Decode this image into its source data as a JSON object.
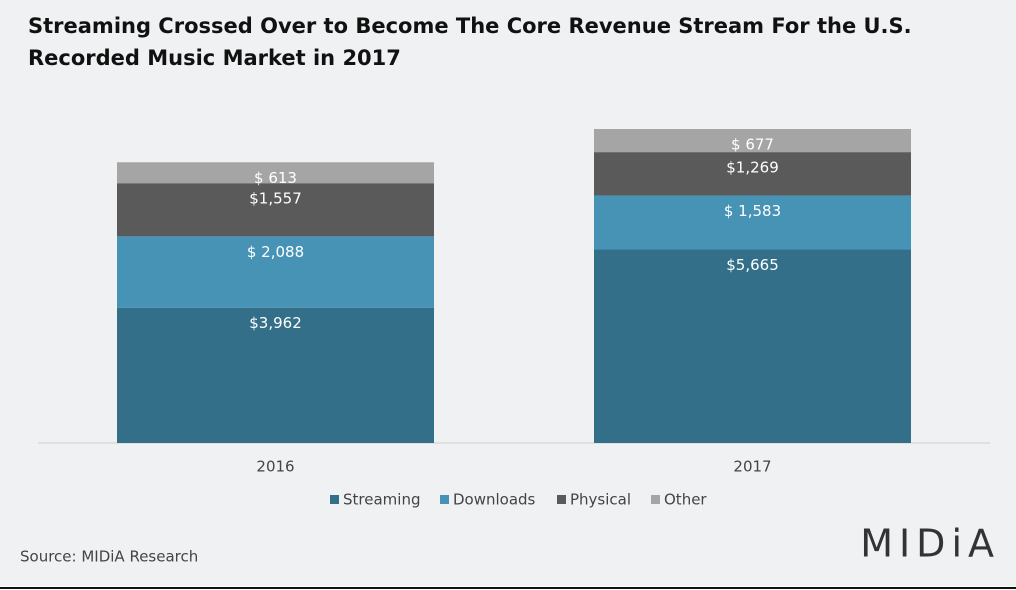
{
  "chart_data": {
    "type": "stacked-bar",
    "title": "Streaming Crossed Over to Become The Core Revenue Stream For the U.S. Recorded Music Market in 2017",
    "categories": [
      "2016",
      "2017"
    ],
    "series": [
      {
        "name": "Streaming",
        "color": "#336f89",
        "values": [
          3962,
          5665
        ],
        "value_labels": [
          "$3,962",
          "$5,665"
        ]
      },
      {
        "name": "Downloads",
        "color": "#4793b5",
        "values": [
          2088,
          1583
        ],
        "value_labels": [
          "$ 2,088",
          "$ 1,583"
        ]
      },
      {
        "name": "Physical",
        "color": "#5a5a5a",
        "values": [
          1557,
          1269
        ],
        "value_labels": [
          "$1,557",
          "$1,269"
        ]
      },
      {
        "name": "Other",
        "color": "#a5a5a5",
        "values": [
          613,
          677
        ],
        "value_labels": [
          "$ 613",
          "$ 677"
        ]
      }
    ],
    "legend": "bottom",
    "source": "Source: MIDiA Research",
    "logo": "MIDiA"
  }
}
